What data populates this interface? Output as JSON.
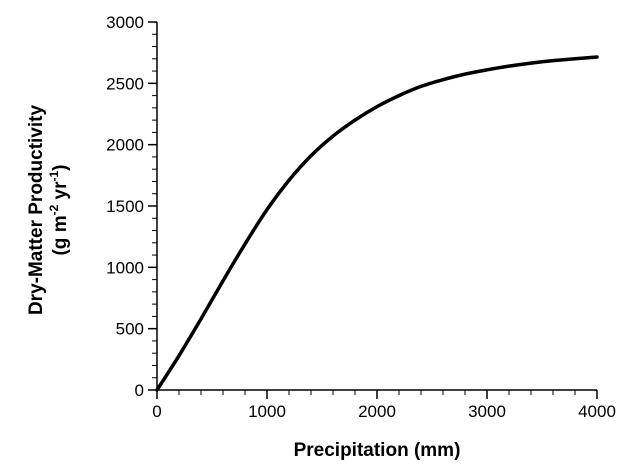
{
  "chart_data": {
    "type": "line",
    "title": "",
    "xlabel": "Precipitation (mm)",
    "ylabel_line1": "Dry-Matter Productivity",
    "ylabel_line2": {
      "open": "(g m",
      "exp1": "-2",
      "mid": " yr",
      "exp2": "-1",
      "close": ")"
    },
    "xlim": [
      0,
      4000
    ],
    "ylim": [
      0,
      3000
    ],
    "x_ticks": [
      0,
      1000,
      2000,
      3000,
      4000
    ],
    "y_ticks": [
      0,
      500,
      1000,
      1500,
      2000,
      2500,
      3000
    ],
    "grid": false,
    "legend": "none",
    "series": [
      {
        "x": [
          0,
          200,
          400,
          600,
          800,
          1000,
          1200,
          1400,
          1600,
          1800,
          2000,
          2200,
          2400,
          2600,
          2800,
          3000,
          3200,
          3400,
          3600,
          3800,
          4000
        ],
        "y": [
          0,
          280,
          580,
          890,
          1190,
          1470,
          1710,
          1910,
          2070,
          2200,
          2310,
          2400,
          2475,
          2530,
          2575,
          2610,
          2640,
          2665,
          2685,
          2700,
          2715
        ],
        "color": "#000000"
      }
    ]
  }
}
